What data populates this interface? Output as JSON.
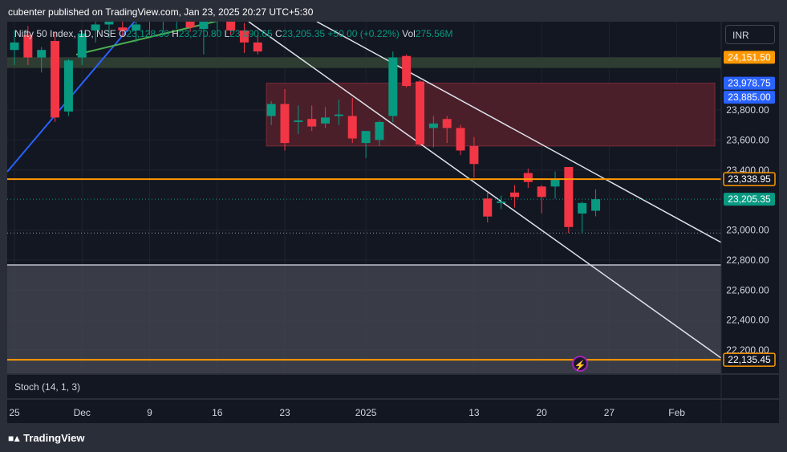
{
  "header": {
    "publisher": "cubenter published on TradingView.com, Jan 23, 2025 20:27 UTC+5:30"
  },
  "legend": {
    "symbol": "Nifty 50 Index, 1D, NSE",
    "o_label": "O",
    "o_value": "23,128.30",
    "h_label": "H",
    "h_value": "23,270.80",
    "l_label": "L",
    "l_value": "23,090.65",
    "c_label": "C",
    "c_value": "23,205.35",
    "change": "+50.00 (+0.22%)",
    "vol_label": "Vol",
    "vol_value": "275.56M"
  },
  "currency_button": "INR",
  "indicator": "Stoch (14, 1, 3)",
  "footer": {
    "brand": "TradingView"
  },
  "colors": {
    "up": "#089981",
    "down": "#f23645",
    "orange": "#ff9800",
    "blue_tag": "#2962ff",
    "green_tag": "#089981",
    "support_zone": "#2e3d31",
    "resistance_zone": "#4a1f2a"
  },
  "chart_data": {
    "type": "candlestick",
    "ylim": [
      22000,
      24400
    ],
    "y_ticks": [
      {
        "value": 23800,
        "label": "23,800.00"
      },
      {
        "value": 23600,
        "label": "23,600.00"
      },
      {
        "value": 23400,
        "label": "23,400.00"
      },
      {
        "value": 23000,
        "label": "23,000.00"
      },
      {
        "value": 22800,
        "label": "22,800.00"
      },
      {
        "value": 22600,
        "label": "22,600.00"
      },
      {
        "value": 22400,
        "label": "22,400.00"
      },
      {
        "value": 22200,
        "label": "22,200.00"
      }
    ],
    "price_tags": [
      {
        "value": 24151.5,
        "label": "24,151.50",
        "kind": "orange"
      },
      {
        "value": 23978.75,
        "label": "23,978.75",
        "kind": "blue"
      },
      {
        "value": 23885.0,
        "label": "23,885.00",
        "kind": "blue"
      },
      {
        "value": 23338.95,
        "label": "23,338.95",
        "kind": "orange_outline"
      },
      {
        "value": 23205.35,
        "label": "23,205.35",
        "kind": "green"
      },
      {
        "value": 22135.45,
        "label": "22,135.45",
        "kind": "orange_outline"
      }
    ],
    "x_ticks": [
      {
        "index": 0,
        "label": "25"
      },
      {
        "index": 5,
        "label": "Dec"
      },
      {
        "index": 10,
        "label": "9"
      },
      {
        "index": 15,
        "label": "16"
      },
      {
        "index": 20,
        "label": "23"
      },
      {
        "index": 26,
        "label": "2025"
      },
      {
        "index": 34,
        "label": "13"
      },
      {
        "index": 39,
        "label": "20"
      },
      {
        "index": 44,
        "label": "27"
      },
      {
        "index": 49,
        "label": "Feb"
      }
    ],
    "candles": [
      {
        "i": 0,
        "o": 24200,
        "h": 24330,
        "l": 24100,
        "c": 24250
      },
      {
        "i": 1,
        "o": 24300,
        "h": 24360,
        "l": 24100,
        "c": 24150
      },
      {
        "i": 2,
        "o": 24150,
        "h": 24220,
        "l": 24050,
        "c": 24200
      },
      {
        "i": 3,
        "o": 24260,
        "h": 24320,
        "l": 23720,
        "c": 23750
      },
      {
        "i": 4,
        "o": 23790,
        "h": 24140,
        "l": 23760,
        "c": 24130
      },
      {
        "i": 5,
        "o": 24150,
        "h": 24330,
        "l": 24100,
        "c": 24310
      },
      {
        "i": 6,
        "o": 24330,
        "h": 24420,
        "l": 24250,
        "c": 24370
      },
      {
        "i": 7,
        "o": 24370,
        "h": 24420,
        "l": 24280,
        "c": 24390
      },
      {
        "i": 8,
        "o": 24350,
        "h": 24420,
        "l": 24290,
        "c": 24330
      },
      {
        "i": 9,
        "o": 24330,
        "h": 24400,
        "l": 24250,
        "c": 24370
      },
      {
        "i": 10,
        "o": 24390,
        "h": 24430,
        "l": 24300,
        "c": 24400
      },
      {
        "i": 11,
        "o": 24400,
        "h": 24440,
        "l": 24320,
        "c": 24420
      },
      {
        "i": 12,
        "o": 24420,
        "h": 24450,
        "l": 24340,
        "c": 24430
      },
      {
        "i": 13,
        "o": 24430,
        "h": 24460,
        "l": 24320,
        "c": 24350
      },
      {
        "i": 14,
        "o": 24340,
        "h": 24420,
        "l": 24170,
        "c": 24410
      },
      {
        "i": 15,
        "o": 24400,
        "h": 24450,
        "l": 24300,
        "c": 24410
      },
      {
        "i": 16,
        "o": 24410,
        "h": 24440,
        "l": 24300,
        "c": 24330
      },
      {
        "i": 17,
        "o": 24330,
        "h": 24380,
        "l": 24180,
        "c": 24250
      },
      {
        "i": 18,
        "o": 24250,
        "h": 24300,
        "l": 24170,
        "c": 24190
      },
      {
        "i": 19,
        "o": 23760,
        "h": 23860,
        "l": 23700,
        "c": 23840
      },
      {
        "i": 20,
        "o": 23840,
        "h": 23940,
        "l": 23530,
        "c": 23580
      },
      {
        "i": 21,
        "o": 23720,
        "h": 23830,
        "l": 23640,
        "c": 23730
      },
      {
        "i": 22,
        "o": 23740,
        "h": 23830,
        "l": 23660,
        "c": 23690
      },
      {
        "i": 23,
        "o": 23710,
        "h": 23820,
        "l": 23680,
        "c": 23750
      },
      {
        "i": 24,
        "o": 23760,
        "h": 23870,
        "l": 23700,
        "c": 23770
      },
      {
        "i": 25,
        "o": 23760,
        "h": 23880,
        "l": 23580,
        "c": 23610
      },
      {
        "i": 26,
        "o": 23580,
        "h": 23660,
        "l": 23480,
        "c": 23660
      },
      {
        "i": 27,
        "o": 23600,
        "h": 23730,
        "l": 23560,
        "c": 23720
      },
      {
        "i": 28,
        "o": 23760,
        "h": 24190,
        "l": 23720,
        "c": 24150
      },
      {
        "i": 29,
        "o": 24160,
        "h": 24170,
        "l": 23950,
        "c": 23960
      },
      {
        "i": 30,
        "o": 23990,
        "h": 24000,
        "l": 23560,
        "c": 23570
      },
      {
        "i": 31,
        "o": 23680,
        "h": 23760,
        "l": 23550,
        "c": 23710
      },
      {
        "i": 32,
        "o": 23740,
        "h": 23760,
        "l": 23580,
        "c": 23680
      },
      {
        "i": 33,
        "o": 23680,
        "h": 23700,
        "l": 23500,
        "c": 23530
      },
      {
        "i": 34,
        "o": 23560,
        "h": 23620,
        "l": 23350,
        "c": 23440
      },
      {
        "i": 35,
        "o": 23210,
        "h": 23250,
        "l": 23050,
        "c": 23090
      },
      {
        "i": 36,
        "o": 23180,
        "h": 23230,
        "l": 23140,
        "c": 23190
      },
      {
        "i": 37,
        "o": 23250,
        "h": 23300,
        "l": 23150,
        "c": 23220
      },
      {
        "i": 38,
        "o": 23380,
        "h": 23410,
        "l": 23280,
        "c": 23320
      },
      {
        "i": 39,
        "o": 23290,
        "h": 23300,
        "l": 23110,
        "c": 23220
      },
      {
        "i": 40,
        "o": 23290,
        "h": 23390,
        "l": 23210,
        "c": 23340
      },
      {
        "i": 41,
        "o": 23420,
        "h": 23420,
        "l": 22980,
        "c": 23020
      },
      {
        "i": 42,
        "o": 23110,
        "h": 23190,
        "l": 22980,
        "c": 23180
      },
      {
        "i": 43,
        "o": 23128.3,
        "h": 23270.8,
        "l": 23090.65,
        "c": 23205.35
      }
    ],
    "horizontal_levels": [
      {
        "value": 23338.95,
        "color": "orange"
      },
      {
        "value": 22135.45,
        "color": "orange"
      }
    ],
    "zones": [
      {
        "from": 24151.5,
        "to": 24080,
        "kind": "support_zone"
      },
      {
        "from": 23978.75,
        "to": 23560,
        "kind": "resistance_zone",
        "start_index": 19
      },
      {
        "from": 22770,
        "to": 22000,
        "kind": "grey_zone"
      }
    ]
  }
}
